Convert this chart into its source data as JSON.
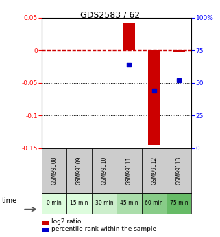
{
  "title": "GDS2583 / 62",
  "samples": [
    "GSM99108",
    "GSM99109",
    "GSM99110",
    "GSM99111",
    "GSM99112",
    "GSM99113"
  ],
  "time_labels": [
    "0 min",
    "15 min",
    "30 min",
    "45 min",
    "60 min",
    "75 min"
  ],
  "time_colors": [
    "#ddfcdd",
    "#ddfcdd",
    "#cceecc",
    "#aaddaa",
    "#88cc88",
    "#66bb66"
  ],
  "log2_values": [
    0.0,
    0.0,
    0.0,
    0.043,
    -0.145,
    -0.003
  ],
  "percentile_values": [
    null,
    null,
    null,
    64,
    44,
    52
  ],
  "ylim_left": [
    -0.15,
    0.05
  ],
  "ylim_right": [
    0,
    100
  ],
  "yticks_left": [
    0.05,
    0.0,
    -0.05,
    -0.1,
    -0.15
  ],
  "yticks_right": [
    100,
    75,
    50,
    25,
    0
  ],
  "bar_color": "#cc0000",
  "dot_color": "#0000cc",
  "hline_color": "#cc0000",
  "bar_width": 0.5,
  "legend_bar_label": "log2 ratio",
  "legend_dot_label": "percentile rank within the sample"
}
